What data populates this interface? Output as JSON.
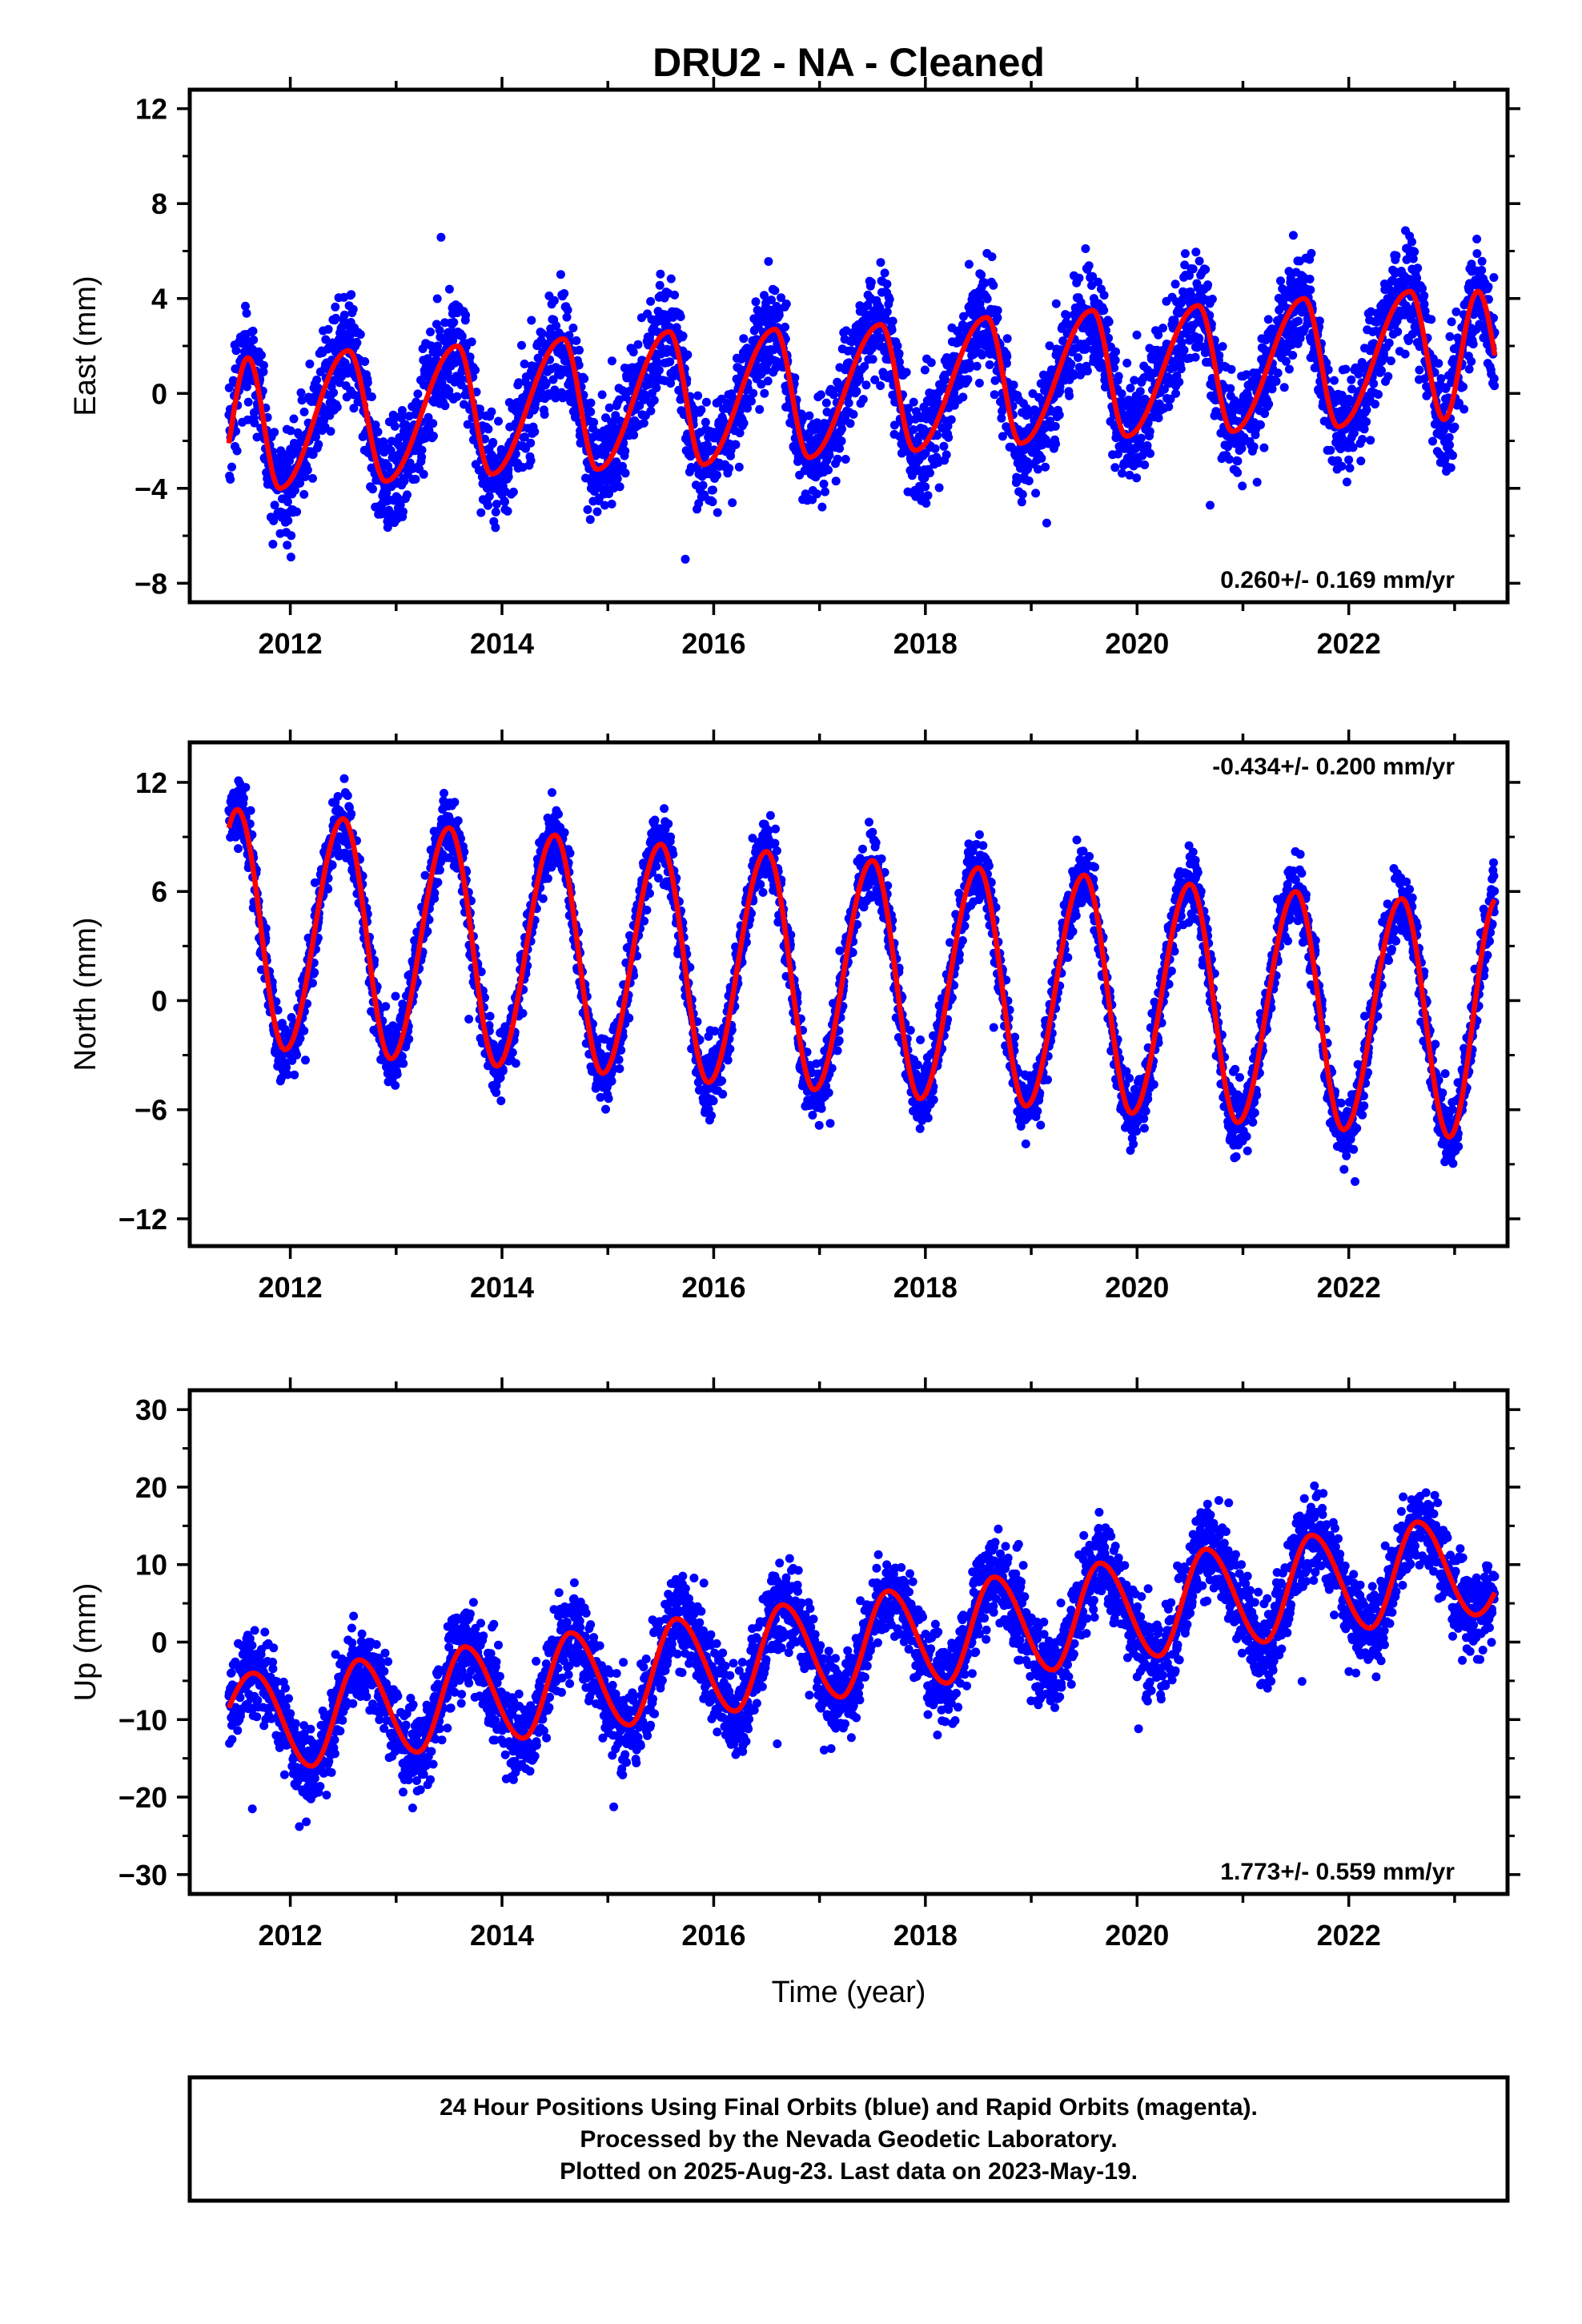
{
  "title": "DRU2  - NA - Cleaned",
  "colors": {
    "points": "#0000ff",
    "model": "#ff0000",
    "frame": "#000000"
  },
  "x_tick_labels": [
    "2012",
    "2014",
    "2016",
    "2018",
    "2020",
    "2022"
  ],
  "x_axis_title": "Time (year)",
  "caption": {
    "line1": "24 Hour Positions Using Final Orbits (blue) and Rapid Orbits (magenta).",
    "line2": "Processed by the Nevada Geodetic Laboratory.",
    "line3": "Plotted on 2025-Aug-23. Last data on 2023-May-19."
  },
  "chart_data": [
    {
      "type": "scatter",
      "panel": "east",
      "ylabel": "East (mm)",
      "rate_text": "0.260+/- 0.169 mm/yr",
      "rate_position": "bottom-right",
      "xlim": [
        2011.05,
        2023.5
      ],
      "ylim": [
        -8.8,
        12.8
      ],
      "y_ticks": [
        -8,
        -4,
        0,
        4,
        8,
        12
      ],
      "y_tick_labels": [
        "−8",
        "−4",
        "0",
        "4",
        "8",
        "12"
      ],
      "series": [
        {
          "name": "Final Orbits (blue)",
          "kind": "points",
          "time_span": [
            2011.42,
            2023.38
          ],
          "approx_scatter_mm": 1.6
        },
        {
          "kind": "model_line",
          "rate_mm_per_yr": 0.26,
          "annual_amplitude_mm": 2.3,
          "annual_peak_month": "August"
        }
      ],
      "model_peaks": [
        {
          "x": 2011.6,
          "y": 1.5
        },
        {
          "x": 2012.55,
          "y": 1.8
        },
        {
          "x": 2013.58,
          "y": 2.0
        },
        {
          "x": 2014.58,
          "y": 2.3
        },
        {
          "x": 2015.58,
          "y": 2.6
        },
        {
          "x": 2016.58,
          "y": 2.7
        },
        {
          "x": 2017.58,
          "y": 2.9
        },
        {
          "x": 2018.58,
          "y": 3.2
        },
        {
          "x": 2019.58,
          "y": 3.5
        },
        {
          "x": 2020.58,
          "y": 3.7
        },
        {
          "x": 2021.58,
          "y": 4.0
        },
        {
          "x": 2022.58,
          "y": 4.3
        }
      ],
      "model_troughs": [
        {
          "x": 2011.9,
          "y": -4.0
        },
        {
          "x": 2012.9,
          "y": -3.7
        },
        {
          "x": 2013.9,
          "y": -3.4
        },
        {
          "x": 2014.9,
          "y": -3.2
        },
        {
          "x": 2015.9,
          "y": -3.0
        },
        {
          "x": 2016.9,
          "y": -2.7
        },
        {
          "x": 2017.9,
          "y": -2.4
        },
        {
          "x": 2018.9,
          "y": -2.1
        },
        {
          "x": 2019.9,
          "y": -1.8
        },
        {
          "x": 2020.9,
          "y": -1.6
        },
        {
          "x": 2021.9,
          "y": -1.4
        },
        {
          "x": 2022.9,
          "y": -1.1
        }
      ]
    },
    {
      "type": "scatter",
      "panel": "north",
      "ylabel": "North (mm)",
      "rate_text": "-0.434+/- 0.200 mm/yr",
      "rate_position": "top-right",
      "xlim": [
        2011.05,
        2023.5
      ],
      "ylim": [
        -13.5,
        14.2
      ],
      "y_ticks": [
        -12,
        -6,
        0,
        6,
        12
      ],
      "y_tick_labels": [
        "−12",
        "−6",
        "0",
        "6",
        "12"
      ],
      "series": [
        {
          "name": "Final Orbits (blue)",
          "kind": "points",
          "time_span": [
            2011.42,
            2023.38
          ],
          "approx_scatter_mm": 1.3
        },
        {
          "kind": "model_line",
          "rate_mm_per_yr": -0.434,
          "annual_amplitude_mm": 6.5,
          "annual_peak_month": "July"
        }
      ],
      "model_peaks": [
        {
          "x": 2011.5,
          "y": 10.5
        },
        {
          "x": 2012.5,
          "y": 10.0
        },
        {
          "x": 2013.5,
          "y": 9.5
        },
        {
          "x": 2014.5,
          "y": 9.1
        },
        {
          "x": 2015.5,
          "y": 8.6
        },
        {
          "x": 2016.5,
          "y": 8.2
        },
        {
          "x": 2017.5,
          "y": 7.7
        },
        {
          "x": 2018.5,
          "y": 7.3
        },
        {
          "x": 2019.5,
          "y": 6.9
        },
        {
          "x": 2020.5,
          "y": 6.4
        },
        {
          "x": 2021.5,
          "y": 6.0
        },
        {
          "x": 2022.5,
          "y": 5.6
        }
      ],
      "model_troughs": [
        {
          "x": 2011.95,
          "y": -2.7
        },
        {
          "x": 2012.95,
          "y": -3.2
        },
        {
          "x": 2013.95,
          "y": -3.6
        },
        {
          "x": 2014.95,
          "y": -4.0
        },
        {
          "x": 2015.95,
          "y": -4.5
        },
        {
          "x": 2016.95,
          "y": -4.9
        },
        {
          "x": 2017.95,
          "y": -5.4
        },
        {
          "x": 2018.95,
          "y": -5.8
        },
        {
          "x": 2019.95,
          "y": -6.2
        },
        {
          "x": 2020.95,
          "y": -6.7
        },
        {
          "x": 2021.95,
          "y": -7.1
        },
        {
          "x": 2022.95,
          "y": -7.5
        }
      ]
    },
    {
      "type": "scatter",
      "panel": "up",
      "ylabel": "Up (mm)",
      "rate_text": "1.773+/- 0.559 mm/yr",
      "rate_position": "bottom-right",
      "xlim": [
        2011.05,
        2023.5
      ],
      "ylim": [
        -32.5,
        32.5
      ],
      "y_ticks": [
        -30,
        -20,
        -10,
        0,
        10,
        20,
        30
      ],
      "y_tick_labels": [
        "−30",
        "−20",
        "−10",
        "0",
        "10",
        "20",
        "30"
      ],
      "series": [
        {
          "name": "Final Orbits (blue)",
          "kind": "points",
          "time_span": [
            2011.42,
            2023.38
          ],
          "approx_scatter_mm": 4.0
        },
        {
          "kind": "model_line",
          "rate_mm_per_yr": 1.773,
          "annual_amplitude_mm": 6.0,
          "annual_peak_month": "September"
        }
      ],
      "model_peaks": [
        {
          "x": 2011.65,
          "y": -4.0
        },
        {
          "x": 2012.65,
          "y": -2.3
        },
        {
          "x": 2013.65,
          "y": -0.6
        },
        {
          "x": 2014.65,
          "y": 1.2
        },
        {
          "x": 2015.65,
          "y": 3.0
        },
        {
          "x": 2016.65,
          "y": 4.8
        },
        {
          "x": 2017.65,
          "y": 6.6
        },
        {
          "x": 2018.65,
          "y": 8.4
        },
        {
          "x": 2019.65,
          "y": 10.2
        },
        {
          "x": 2020.65,
          "y": 12.0
        },
        {
          "x": 2021.65,
          "y": 13.8
        },
        {
          "x": 2022.65,
          "y": 15.5
        }
      ],
      "model_troughs": [
        {
          "x": 2012.2,
          "y": -16.0
        },
        {
          "x": 2013.2,
          "y": -14.2
        },
        {
          "x": 2014.2,
          "y": -12.4
        },
        {
          "x": 2015.2,
          "y": -10.7
        },
        {
          "x": 2016.2,
          "y": -8.9
        },
        {
          "x": 2017.2,
          "y": -7.1
        },
        {
          "x": 2018.2,
          "y": -5.3
        },
        {
          "x": 2019.2,
          "y": -3.6
        },
        {
          "x": 2020.2,
          "y": -1.8
        },
        {
          "x": 2021.2,
          "y": 0.0
        },
        {
          "x": 2022.2,
          "y": 1.8
        },
        {
          "x": 2023.2,
          "y": 3.5
        }
      ]
    }
  ]
}
